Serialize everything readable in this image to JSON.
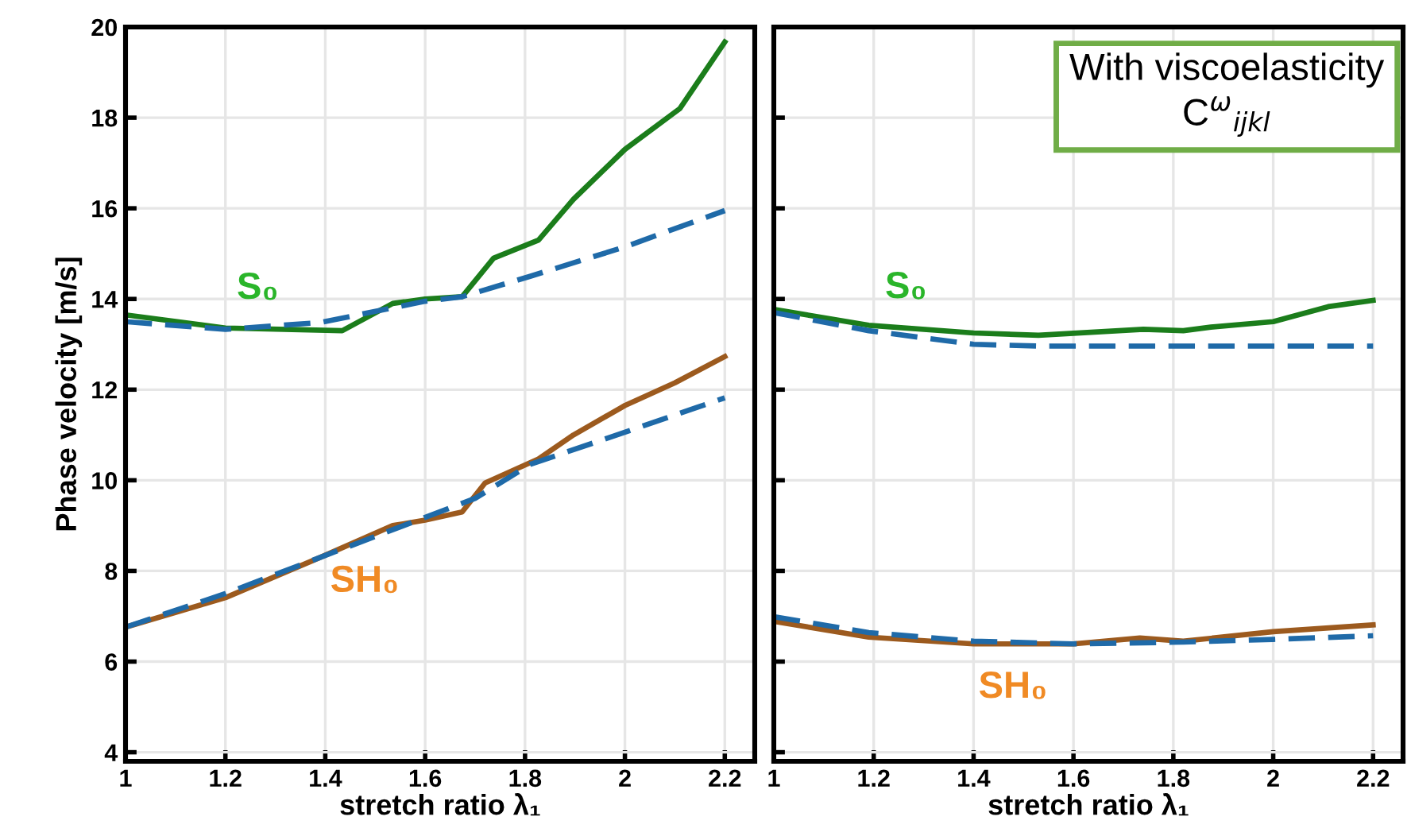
{
  "chart_data": [
    {
      "type": "line",
      "ylabel": "Phase velocity [m/s]",
      "xlabel": "stretch ratio λ₁",
      "xlim": [
        1,
        2.26
      ],
      "xticks": [
        1,
        1.2,
        1.4,
        1.6,
        1.8,
        2,
        2.2
      ],
      "ylim": [
        3.8,
        20
      ],
      "yticks": [
        4,
        6,
        8,
        10,
        12,
        14,
        16,
        18,
        20
      ],
      "grid": true,
      "legend": false,
      "series": [
        {
          "color": "#1b7d1b",
          "line_style": "solid",
          "x": [
            1,
            1.2,
            1.434,
            1.535,
            1.6,
            1.674,
            1.737,
            1.827,
            1.897,
            2.0,
            2.11,
            2.2
          ],
          "values": [
            13.65,
            13.36,
            13.3,
            13.9,
            14.0,
            14.05,
            14.9,
            15.3,
            16.2,
            17.3,
            18.2,
            19.67
          ]
        },
        {
          "color": "#1f6aa8",
          "line_style": "dashed",
          "x": [
            1,
            1.2,
            1.39,
            1.6,
            1.674,
            1.81,
            2.0,
            2.2
          ],
          "values": [
            13.5,
            13.33,
            13.48,
            13.95,
            14.05,
            14.5,
            15.15,
            15.95
          ]
        },
        {
          "color": "#9c5a1e",
          "line_style": "solid",
          "x": [
            1,
            1.2,
            1.39,
            1.535,
            1.6,
            1.674,
            1.72,
            1.827,
            1.897,
            2.0,
            2.1,
            2.2
          ],
          "values": [
            6.76,
            7.41,
            8.3,
            9.0,
            9.12,
            9.3,
            9.94,
            10.47,
            11.0,
            11.65,
            12.15,
            12.73
          ]
        },
        {
          "color": "#1f6aa8",
          "line_style": "dashed",
          "x": [
            1,
            1.2,
            1.39,
            1.7,
            1.81,
            2.0,
            2.2
          ],
          "values": [
            6.76,
            7.5,
            8.3,
            9.6,
            10.35,
            11.06,
            11.82
          ]
        }
      ],
      "annotations": [
        "S₀",
        "SH₀"
      ]
    },
    {
      "type": "line",
      "xlabel": "stretch ratio λ₁",
      "xlim": [
        1,
        2.26
      ],
      "xticks": [
        1,
        1.2,
        1.4,
        1.6,
        1.8,
        2,
        2.2
      ],
      "ylim": [
        3.8,
        20
      ],
      "yticks": [
        4,
        6,
        8,
        10,
        12,
        14,
        16,
        18,
        20
      ],
      "grid": true,
      "legend": false,
      "tick_labels": "x",
      "series": [
        {
          "color": "#1b7d1b",
          "line_style": "solid",
          "x": [
            1,
            1.19,
            1.4,
            1.53,
            1.74,
            1.82,
            1.875,
            2.0,
            2.11,
            2.2
          ],
          "values": [
            13.77,
            13.42,
            13.25,
            13.2,
            13.33,
            13.3,
            13.38,
            13.5,
            13.83,
            13.97
          ]
        },
        {
          "color": "#1f6aa8",
          "line_style": "dashed",
          "x": [
            1,
            1.19,
            1.4,
            1.53,
            2.2
          ],
          "values": [
            13.7,
            13.3,
            13.0,
            12.96,
            12.96
          ]
        },
        {
          "color": "#9c5a1e",
          "line_style": "solid",
          "x": [
            1,
            1.19,
            1.4,
            1.6,
            1.733,
            1.82,
            2.0,
            2.2
          ],
          "values": [
            6.89,
            6.54,
            6.39,
            6.39,
            6.52,
            6.45,
            6.66,
            6.81
          ]
        },
        {
          "color": "#1f6aa8",
          "line_style": "dashed",
          "x": [
            1,
            1.19,
            1.4,
            1.6,
            1.82,
            2.0,
            2.2
          ],
          "values": [
            6.99,
            6.64,
            6.45,
            6.39,
            6.43,
            6.49,
            6.57
          ]
        }
      ],
      "annotations": [
        "S₀",
        "SH₀",
        "With viscoelasticity\nC$^{ω}$$_{ijkl}$"
      ]
    }
  ]
}
